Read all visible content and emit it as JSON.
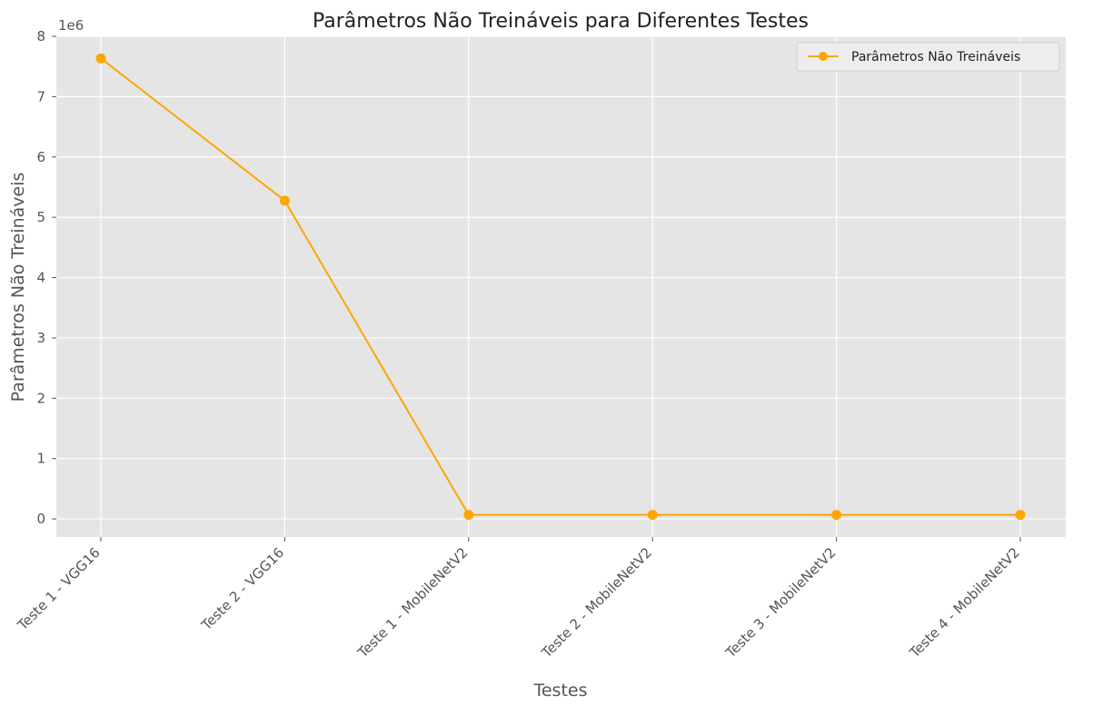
{
  "chart_data": {
    "type": "line",
    "title": "Parâmetros Não Treináveis para Diferentes Testes",
    "xlabel": "Testes",
    "ylabel": "Parâmetros Não Treináveis",
    "y_offset_label": "1e6",
    "categories": [
      "Teste 1 - VGG16",
      "Teste 2 - VGG16",
      "Teste 1 - MobileNetV2",
      "Teste 2 - MobileNetV2",
      "Teste 3 - MobileNetV2",
      "Teste 4 - MobileNetV2"
    ],
    "series": [
      {
        "name": "Parâmetros Não Treináveis",
        "values": [
          7635264,
          5275648,
          66560,
          66560,
          66560,
          66560
        ],
        "color": "#FFA500"
      }
    ],
    "ylim": [
      -300000,
      8000000
    ],
    "y_ticks": [
      0,
      1,
      2,
      3,
      4,
      5,
      6,
      7,
      8
    ],
    "grid": true,
    "legend_position": "top-right",
    "colors": {
      "plot_background": "#E5E5E5",
      "grid": "#FFFFFF",
      "line": "#FFA500"
    }
  }
}
